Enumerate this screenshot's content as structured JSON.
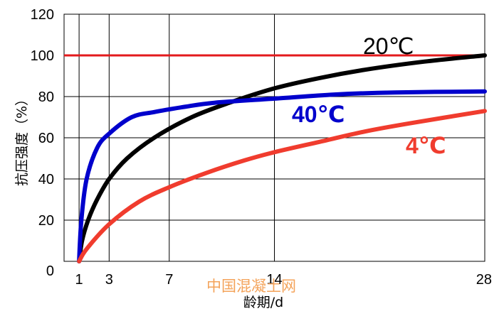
{
  "chart_data": {
    "type": "line",
    "xlabel": "龄期/d",
    "ylabel": "抗压强度（%）",
    "xlim": [
      0,
      28
    ],
    "ylim": [
      0,
      120
    ],
    "x_ticks": [
      "1",
      "3",
      "7",
      "14",
      "28"
    ],
    "y_ticks": [
      "0",
      "20",
      "40",
      "60",
      "80",
      "100",
      "120"
    ],
    "grid": true,
    "reference_line": {
      "y": 100,
      "color": "#e31a1c"
    },
    "series": [
      {
        "name": "20℃",
        "color": "#000000",
        "points": [
          [
            1,
            0
          ],
          [
            1.2,
            10
          ],
          [
            1.6,
            20
          ],
          [
            2.2,
            30
          ],
          [
            3,
            40
          ],
          [
            4.2,
            50
          ],
          [
            6,
            60
          ],
          [
            8.5,
            70
          ],
          [
            11,
            77
          ],
          [
            14,
            84
          ],
          [
            17,
            89
          ],
          [
            20,
            93
          ],
          [
            24,
            97
          ],
          [
            28,
            100
          ]
        ]
      },
      {
        "name": "40℃",
        "color": "#0000cc",
        "points": [
          [
            1,
            0
          ],
          [
            1.15,
            20
          ],
          [
            1.5,
            40
          ],
          [
            2.2,
            55
          ],
          [
            3,
            62
          ],
          [
            4.5,
            70
          ],
          [
            6,
            72.5
          ],
          [
            8,
            75
          ],
          [
            10,
            77
          ],
          [
            14,
            79
          ],
          [
            18,
            81
          ],
          [
            22,
            82
          ],
          [
            28,
            82.5
          ]
        ]
      },
      {
        "name": "4℃",
        "color": "#f03c2e",
        "points": [
          [
            1,
            0
          ],
          [
            1.5,
            6
          ],
          [
            3,
            18
          ],
          [
            5,
            29
          ],
          [
            7,
            36
          ],
          [
            9.5,
            43
          ],
          [
            12,
            49
          ],
          [
            14,
            53
          ],
          [
            17,
            58
          ],
          [
            20,
            63
          ],
          [
            23,
            67
          ],
          [
            28,
            73
          ]
        ]
      }
    ]
  },
  "watermark": "中国混凝土网"
}
